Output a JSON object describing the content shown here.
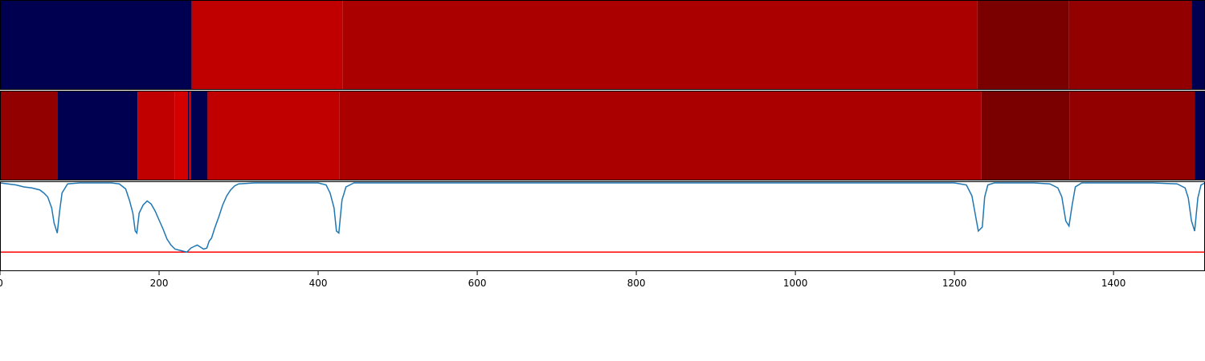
{
  "chart_data": [
    {
      "type": "heatmap",
      "x_range": [
        0,
        1515
      ],
      "colors": {
        "navy": "#000050",
        "red": "#c00000",
        "brightred": "#d40000",
        "darkred": "#aa0000",
        "darkerred": "#930000",
        "maroon": "#7a0000"
      },
      "segments": [
        {
          "start": 0,
          "end": 241,
          "color": "#000050"
        },
        {
          "start": 241,
          "end": 431,
          "color": "#c00000"
        },
        {
          "start": 431,
          "end": 1229,
          "color": "#aa0000"
        },
        {
          "start": 1229,
          "end": 1344,
          "color": "#7a0000"
        },
        {
          "start": 1344,
          "end": 1498,
          "color": "#930000"
        },
        {
          "start": 1498,
          "end": 1515,
          "color": "#000050"
        }
      ]
    },
    {
      "type": "heatmap",
      "x_range": [
        0,
        1515
      ],
      "segments": [
        {
          "start": 0,
          "end": 72,
          "color": "#930000"
        },
        {
          "start": 72,
          "end": 173,
          "color": "#000050"
        },
        {
          "start": 173,
          "end": 220,
          "color": "#c00000"
        },
        {
          "start": 220,
          "end": 236,
          "color": "#d40000"
        },
        {
          "start": 236,
          "end": 238,
          "color": "#000050"
        },
        {
          "start": 238,
          "end": 240,
          "color": "#d40000"
        },
        {
          "start": 240,
          "end": 261,
          "color": "#000050"
        },
        {
          "start": 261,
          "end": 427,
          "color": "#c00000"
        },
        {
          "start": 427,
          "end": 1234,
          "color": "#aa0000"
        },
        {
          "start": 1234,
          "end": 1345,
          "color": "#7a0000"
        },
        {
          "start": 1345,
          "end": 1502,
          "color": "#930000"
        },
        {
          "start": 1502,
          "end": 1515,
          "color": "#000050"
        }
      ]
    },
    {
      "type": "line",
      "x_range": [
        0,
        1515
      ],
      "y_range": [
        0,
        1
      ],
      "xticks": [
        0,
        200,
        400,
        600,
        800,
        1000,
        1200,
        1400
      ],
      "xtick_labels": [
        "0",
        "200",
        "400",
        "600",
        "800",
        "1000",
        "1200",
        "1400"
      ],
      "threshold": 0.31,
      "threshold_color": "#ff0000",
      "line_color": "#1f77b4",
      "x": [
        0,
        10,
        20,
        30,
        40,
        50,
        55,
        60,
        65,
        68,
        72,
        75,
        78,
        85,
        100,
        120,
        140,
        150,
        158,
        163,
        167,
        170,
        172,
        175,
        180,
        185,
        190,
        195,
        200,
        205,
        210,
        215,
        220,
        225,
        230,
        235,
        240,
        245,
        248,
        252,
        256,
        260,
        263,
        266,
        270,
        275,
        280,
        285,
        290,
        295,
        300,
        320,
        350,
        380,
        400,
        410,
        415,
        420,
        423,
        426,
        430,
        435,
        445,
        500,
        1000,
        1200,
        1215,
        1222,
        1230,
        1235,
        1238,
        1242,
        1250,
        1270,
        1300,
        1320,
        1330,
        1335,
        1340,
        1344,
        1348,
        1352,
        1360,
        1380,
        1450,
        1480,
        1490,
        1494,
        1498,
        1502,
        1506,
        1510,
        1515
      ],
      "y": [
        1.0,
        0.99,
        0.98,
        0.96,
        0.95,
        0.93,
        0.9,
        0.86,
        0.75,
        0.6,
        0.5,
        0.72,
        0.9,
        0.99,
        1.0,
        1.0,
        1.0,
        0.99,
        0.94,
        0.82,
        0.7,
        0.52,
        0.5,
        0.7,
        0.78,
        0.82,
        0.79,
        0.72,
        0.63,
        0.54,
        0.44,
        0.38,
        0.34,
        0.33,
        0.32,
        0.31,
        0.35,
        0.37,
        0.38,
        0.36,
        0.34,
        0.35,
        0.42,
        0.45,
        0.55,
        0.66,
        0.78,
        0.87,
        0.93,
        0.97,
        0.99,
        1.0,
        1.0,
        1.0,
        1.0,
        0.98,
        0.9,
        0.75,
        0.52,
        0.5,
        0.83,
        0.96,
        1.0,
        1.0,
        1.0,
        1.0,
        0.98,
        0.87,
        0.52,
        0.56,
        0.86,
        0.98,
        1.0,
        1.0,
        1.0,
        0.99,
        0.95,
        0.86,
        0.62,
        0.57,
        0.78,
        0.96,
        1.0,
        1.0,
        1.0,
        0.99,
        0.95,
        0.85,
        0.62,
        0.52,
        0.85,
        0.98,
        1.0
      ]
    }
  ]
}
